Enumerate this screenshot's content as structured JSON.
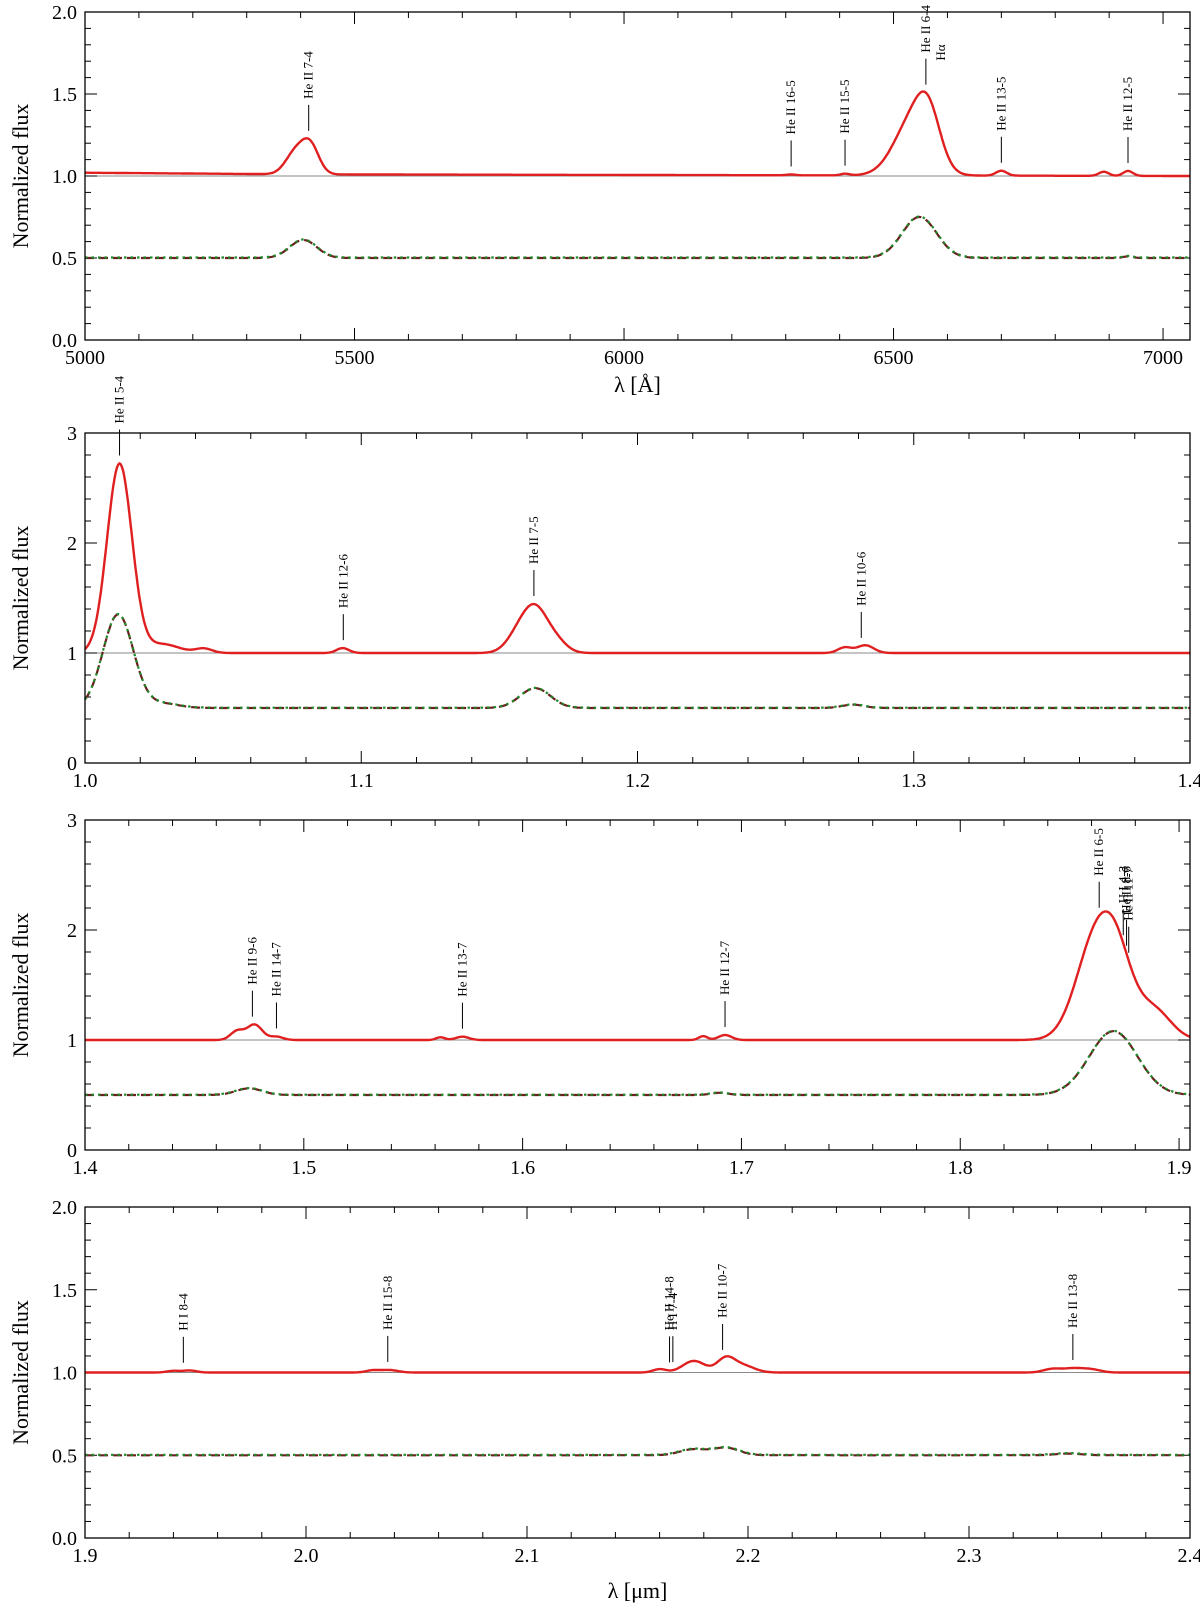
{
  "colors": {
    "observed": "#e02020",
    "model_dashed": "#6b1f1f",
    "model_dotted": "#1e8a2a",
    "reference": "#8a8a8a"
  },
  "chart_data": [
    {
      "type": "line",
      "xlabel": "λ [Å]",
      "ylabel": "Normalized flux",
      "xlim": [
        5000,
        7050
      ],
      "ylim": [
        0,
        2.0
      ],
      "xticks": [
        5000,
        5500,
        6000,
        6500,
        7000
      ],
      "yticks": [
        0.0,
        0.5,
        1.0,
        1.5,
        2.0
      ],
      "ytick_labels": [
        "0.0",
        "0.5",
        "1.0",
        "1.5",
        "2.0"
      ],
      "reference_level": 1.0,
      "continuum": 1.0,
      "continuum_slope": [
        [
          5000,
          1.02
        ],
        [
          5400,
          1.01
        ],
        [
          7050,
          1.0
        ]
      ],
      "model_offset": 0.5,
      "observed_lines": [
        {
          "center": 5390,
          "amp": 0.13,
          "width": 18
        },
        {
          "center": 5418,
          "amp": 0.17,
          "width": 16
        },
        {
          "center": 6310,
          "amp": 0.005,
          "width": 8
        },
        {
          "center": 6410,
          "amp": 0.01,
          "width": 8
        },
        {
          "center": 6535,
          "amp": 0.33,
          "width": 34
        },
        {
          "center": 6565,
          "amp": 0.26,
          "width": 22
        },
        {
          "center": 6700,
          "amp": 0.03,
          "width": 10
        },
        {
          "center": 6890,
          "amp": 0.025,
          "width": 9
        },
        {
          "center": 6935,
          "amp": 0.03,
          "width": 9
        }
      ],
      "model_lines": [
        {
          "center": 5405,
          "amp": 0.11,
          "width": 25
        },
        {
          "center": 6548,
          "amp": 0.25,
          "width": 32
        },
        {
          "center": 6935,
          "amp": 0.01,
          "width": 9
        }
      ],
      "line_ids": [
        {
          "label": "He II 7-4",
          "x": 5415
        },
        {
          "label": "He II 16-5",
          "x": 6310
        },
        {
          "label": "He II 15-5",
          "x": 6410
        },
        {
          "label": "He II 6-4",
          "x": 6560,
          "label2": "Hα"
        },
        {
          "label": "He II 13-5",
          "x": 6700
        },
        {
          "label": "He II 12-5",
          "x": 6935
        }
      ]
    },
    {
      "type": "line",
      "xlabel": "",
      "ylabel": "Normalized flux",
      "xlim": [
        1.0,
        1.4
      ],
      "ylim": [
        0,
        3
      ],
      "xticks": [
        1.0,
        1.1,
        1.2,
        1.3,
        1.4
      ],
      "xtick_labels": [
        "1.0",
        "1.1",
        "1.2",
        "1.3",
        "1.4"
      ],
      "yticks": [
        0,
        1,
        2,
        3
      ],
      "ytick_labels": [
        "0",
        "1",
        "2",
        "3"
      ],
      "reference_level": 1.0,
      "continuum": 1.0,
      "model_offset": 0.5,
      "observed_lines": [
        {
          "center": 1.0125,
          "amp": 1.72,
          "width": 0.0045
        },
        {
          "center": 1.028,
          "amp": 0.08,
          "width": 0.006
        },
        {
          "center": 1.043,
          "amp": 0.04,
          "width": 0.003
        },
        {
          "center": 1.0925,
          "amp": 0.03,
          "width": 0.002
        },
        {
          "center": 1.0945,
          "amp": 0.02,
          "width": 0.002
        },
        {
          "center": 1.158,
          "amp": 0.22,
          "width": 0.0045
        },
        {
          "center": 1.1635,
          "amp": 0.3,
          "width": 0.004
        },
        {
          "center": 1.17,
          "amp": 0.12,
          "width": 0.004
        },
        {
          "center": 1.275,
          "amp": 0.05,
          "width": 0.0025
        },
        {
          "center": 1.2825,
          "amp": 0.07,
          "width": 0.003
        }
      ],
      "model_lines": [
        {
          "center": 1.012,
          "amp": 0.85,
          "width": 0.0055
        },
        {
          "center": 1.028,
          "amp": 0.04,
          "width": 0.006
        },
        {
          "center": 1.163,
          "amp": 0.18,
          "width": 0.0055
        },
        {
          "center": 1.278,
          "amp": 0.03,
          "width": 0.004
        }
      ],
      "line_ids": [
        {
          "label": "He II 5-4",
          "x": 1.0125
        },
        {
          "label": "He II 12-6",
          "x": 1.0935
        },
        {
          "label": "He II 7-5",
          "x": 1.1625
        },
        {
          "label": "He II 10-6",
          "x": 1.281
        }
      ]
    },
    {
      "type": "line",
      "xlabel": "",
      "ylabel": "Normalized flux",
      "xlim": [
        1.4,
        1.905
      ],
      "ylim": [
        0,
        3
      ],
      "xticks": [
        1.4,
        1.5,
        1.6,
        1.7,
        1.8,
        1.9
      ],
      "xtick_labels": [
        "1.4",
        "1.5",
        "1.6",
        "1.7",
        "1.8",
        "1.9"
      ],
      "yticks": [
        0,
        1,
        2,
        3
      ],
      "ytick_labels": [
        "0",
        "1",
        "2",
        "3"
      ],
      "reference_level": 1.0,
      "continuum": 1.0,
      "model_offset": 0.5,
      "observed_lines": [
        {
          "center": 1.4695,
          "amp": 0.08,
          "width": 0.003
        },
        {
          "center": 1.4775,
          "amp": 0.14,
          "width": 0.0035
        },
        {
          "center": 1.4875,
          "amp": 0.03,
          "width": 0.003
        },
        {
          "center": 1.5625,
          "amp": 0.025,
          "width": 0.002
        },
        {
          "center": 1.5725,
          "amp": 0.03,
          "width": 0.003
        },
        {
          "center": 1.6825,
          "amp": 0.035,
          "width": 0.002
        },
        {
          "center": 1.6925,
          "amp": 0.045,
          "width": 0.003
        },
        {
          "center": 1.862,
          "amp": 0.9,
          "width": 0.009
        },
        {
          "center": 1.872,
          "amp": 0.5,
          "width": 0.007
        },
        {
          "center": 1.888,
          "amp": 0.28,
          "width": 0.008
        }
      ],
      "model_lines": [
        {
          "center": 1.475,
          "amp": 0.06,
          "width": 0.006
        },
        {
          "center": 1.69,
          "amp": 0.02,
          "width": 0.004
        },
        {
          "center": 1.87,
          "amp": 0.58,
          "width": 0.011
        }
      ],
      "line_ids": [
        {
          "label": "He II 9-6",
          "x": 1.4765
        },
        {
          "label": "He II 14-7",
          "x": 1.4875
        },
        {
          "label": "He II 13-7",
          "x": 1.5725
        },
        {
          "label": "He II 12-7",
          "x": 1.6925
        },
        {
          "label": "He II 6-5",
          "x": 1.8635
        },
        {
          "label": "He II 8-6",
          "x": 1.876
        },
        {
          "label": "H I 4-3",
          "x": 1.8745
        },
        {
          "label": "He II 11-7",
          "x": 1.877
        }
      ]
    },
    {
      "type": "line",
      "xlabel": "λ [μm]",
      "ylabel": "Normalized flux",
      "xlim": [
        1.9,
        2.4
      ],
      "ylim": [
        0,
        2.0
      ],
      "xticks": [
        1.9,
        2.0,
        2.1,
        2.2,
        2.3,
        2.4
      ],
      "xtick_labels": [
        "1.9",
        "2.0",
        "2.1",
        "2.2",
        "2.3",
        "2.4"
      ],
      "yticks": [
        0.0,
        0.5,
        1.0,
        1.5,
        2.0
      ],
      "ytick_labels": [
        "0.0",
        "0.5",
        "1.0",
        "1.5",
        "2.0"
      ],
      "reference_level": 1.0,
      "continuum": 1.0,
      "model_offset": 0.5,
      "observed_lines": [
        {
          "center": 1.94,
          "amp": 0.01,
          "width": 0.003
        },
        {
          "center": 1.9475,
          "amp": 0.012,
          "width": 0.003
        },
        {
          "center": 2.03,
          "amp": 0.012,
          "width": 0.003
        },
        {
          "center": 2.0375,
          "amp": 0.015,
          "width": 0.004
        },
        {
          "center": 2.16,
          "amp": 0.02,
          "width": 0.003
        },
        {
          "center": 2.1755,
          "amp": 0.07,
          "width": 0.005
        },
        {
          "center": 2.19,
          "amp": 0.085,
          "width": 0.004
        },
        {
          "center": 2.198,
          "amp": 0.04,
          "width": 0.005
        },
        {
          "center": 2.3375,
          "amp": 0.02,
          "width": 0.004
        },
        {
          "center": 2.3475,
          "amp": 0.025,
          "width": 0.005
        },
        {
          "center": 2.356,
          "amp": 0.015,
          "width": 0.004
        }
      ],
      "model_lines": [
        {
          "center": 2.175,
          "amp": 0.035,
          "width": 0.006
        },
        {
          "center": 2.19,
          "amp": 0.045,
          "width": 0.006
        },
        {
          "center": 2.345,
          "amp": 0.01,
          "width": 0.006
        }
      ],
      "line_ids": [
        {
          "label": "H I 8-4",
          "x": 1.9445
        },
        {
          "label": "He II 15-8",
          "x": 2.037
        },
        {
          "label": "He II 14-8",
          "x": 2.1645
        },
        {
          "label": "H I 7-4",
          "x": 2.166
        },
        {
          "label": "He II 10-7",
          "x": 2.1885
        },
        {
          "label": "He II 13-8",
          "x": 2.347
        }
      ]
    }
  ]
}
